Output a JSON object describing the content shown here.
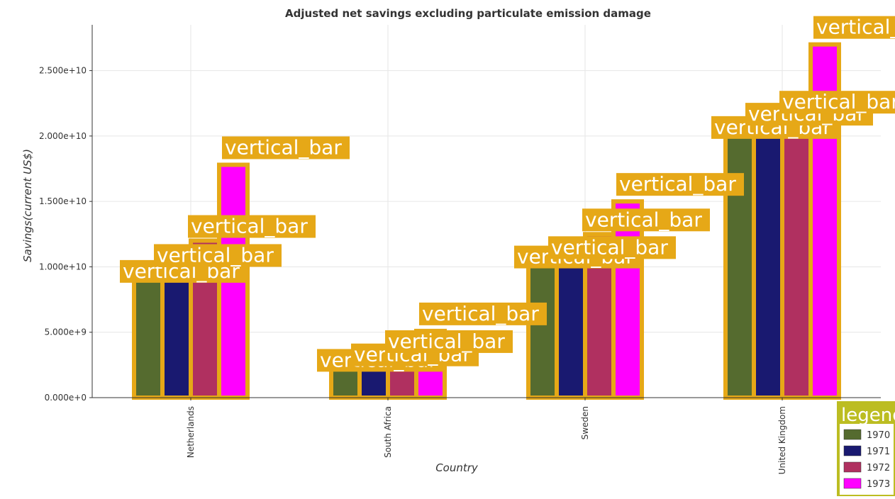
{
  "chart_data": {
    "type": "bar",
    "title": "Adjusted net savings excluding particulate emission damage",
    "xlabel": "Country",
    "ylabel": "Savings(current US$)",
    "categories": [
      "Netherlands",
      "South Africa",
      "Sweden",
      "United Kingdom"
    ],
    "series": [
      {
        "name": "1970",
        "color": "#556b2f",
        "values": [
          9000000000.0,
          2200000000.0,
          10100000000.0,
          20000000000.0
        ]
      },
      {
        "name": "1971",
        "color": "#191970",
        "values": [
          10000000000.0,
          2400000000.0,
          10600000000.0,
          20800000000.0
        ]
      },
      {
        "name": "1972",
        "color": "#b03060",
        "values": [
          12000000000.0,
          3200000000.0,
          12500000000.0,
          21500000000.0
        ]
      },
      {
        "name": "1973",
        "color": "#ff00ff",
        "values": [
          17800000000.0,
          5100000000.0,
          15000000000.0,
          27000000000.0
        ]
      }
    ],
    "ylim": [
      0,
      28500000000.0
    ],
    "yticks": [
      0,
      5000000000.0,
      10000000000.0,
      15000000000.0,
      20000000000.0,
      25000000000.0
    ],
    "ytick_labels": [
      "0.000e+0",
      "5.000e+9",
      "1.000e+10",
      "1.500e+10",
      "2.000e+10",
      "2.500e+10"
    ],
    "grid": true,
    "legend": {
      "title": "legend",
      "position": "bottom-right"
    },
    "annotation_text": "vertical_bar",
    "annotation_color": "#e6a817",
    "legend_box_color": "#bcbd22"
  }
}
